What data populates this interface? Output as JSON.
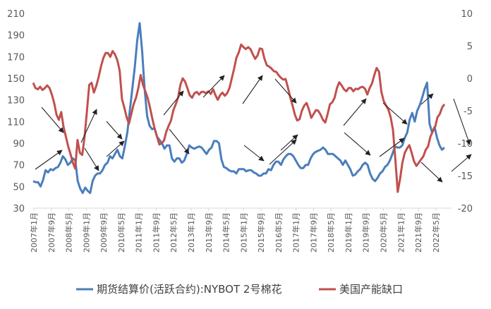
{
  "chart_data": {
    "type": "line",
    "title": "",
    "x_labels": [
      "2007年1月",
      "2007年9月",
      "2008年5月",
      "2009年1月",
      "2009年9月",
      "2010年5月",
      "2011年1月",
      "2011年9月",
      "2012年5月",
      "2013年1月",
      "2013年9月",
      "2014年5月",
      "2015年1月",
      "2015年9月",
      "2016年5月",
      "2017年1月",
      "2017年9月",
      "2018年5月",
      "2019年1月",
      "2019年9月",
      "2020年5月",
      "2021年1月",
      "2021年9月",
      "2022年5月"
    ],
    "y_left": {
      "min": 30,
      "max": 210,
      "ticks": [
        30,
        50,
        70,
        90,
        110,
        130,
        150,
        170,
        190,
        210
      ]
    },
    "y_right": {
      "min": -20,
      "max": 10,
      "ticks": [
        -20,
        -15,
        -10,
        -5,
        0,
        5,
        10
      ]
    },
    "grid": false,
    "legend_position": "bottom",
    "series": [
      {
        "name": "期货结算价(活跃合约):NYBOT 2号棉花",
        "axis": "left",
        "color": "#4a7ebb",
        "values": [
          55,
          54,
          54,
          50,
          56,
          65,
          63,
          66,
          65,
          67,
          68,
          72,
          78,
          75,
          70,
          72,
          76,
          74,
          55,
          48,
          44,
          49,
          46,
          44,
          55,
          60,
          62,
          62,
          65,
          70,
          72,
          78,
          76,
          80,
          84,
          78,
          76,
          87,
          100,
          120,
          140,
          160,
          185,
          201,
          175,
          140,
          115,
          106,
          103,
          104,
          96,
          93,
          90,
          85,
          88,
          88,
          76,
          73,
          76,
          76,
          72,
          74,
          80,
          88,
          86,
          85,
          86,
          87,
          86,
          83,
          80,
          84,
          86,
          92,
          92,
          90,
          75,
          68,
          67,
          65,
          64,
          64,
          62,
          66,
          66,
          66,
          64,
          65,
          65,
          63,
          62,
          60,
          60,
          62,
          62,
          66,
          65,
          70,
          73,
          73,
          70,
          75,
          78,
          80,
          80,
          78,
          74,
          70,
          67,
          67,
          70,
          70,
          76,
          80,
          82,
          83,
          84,
          86,
          84,
          80,
          80,
          80,
          78,
          76,
          74,
          70,
          74,
          70,
          66,
          60,
          61,
          64,
          66,
          70,
          72,
          70,
          62,
          57,
          55,
          58,
          62,
          64,
          68,
          70,
          74,
          80,
          87,
          86,
          86,
          88,
          95,
          100,
          112,
          118,
          110,
          120,
          125,
          132,
          140,
          146,
          108,
          100,
          105,
          95,
          88,
          84,
          86
        ]
      },
      {
        "name": "美国产能缺口",
        "axis": "right",
        "color": "#c0504d",
        "values": [
          -0.7,
          -1.5,
          -1.7,
          -1.3,
          -1.8,
          -1.5,
          -1.1,
          -1.5,
          -2.5,
          -3.8,
          -5.6,
          -6.4,
          -5.2,
          -7.5,
          -9.0,
          -10.5,
          -11.7,
          -13.0,
          -13.9,
          -9.5,
          -11.5,
          -11.8,
          -9.0,
          -5.1,
          -1.0,
          -0.7,
          -2.2,
          -1.2,
          0.2,
          1.8,
          3.1,
          3.9,
          3.9,
          3.3,
          4.2,
          3.7,
          2.8,
          1.2,
          -3.2,
          -4.5,
          -6.0,
          -7.0,
          -5.5,
          -4.0,
          -3.0,
          -1.5,
          0.5,
          -1.0,
          -2.0,
          -3.0,
          -4.5,
          -6.2,
          -7.8,
          -9.0,
          -10.2,
          -10.0,
          -9.6,
          -8.2,
          -7.3,
          -6.5,
          -4.9,
          -4.0,
          -3.0,
          -1.0,
          0.0,
          -0.5,
          -1.5,
          -2.6,
          -3.0,
          -2.3,
          -2.1,
          -2.5,
          -2.1,
          -2.1,
          -2.3,
          -2.0,
          -2.4,
          -1.7,
          -2.6,
          -3.3,
          -2.6,
          -2.2,
          -2.7,
          -2.3,
          -1.5,
          0.0,
          1.5,
          3.2,
          4.0,
          5.2,
          4.8,
          4.5,
          4.8,
          4.5,
          3.7,
          3.0,
          3.5,
          4.6,
          4.5,
          3.0,
          2.0,
          1.8,
          1.5,
          1.1,
          1.0,
          0.5,
          0.1,
          -0.2,
          -0.1,
          -1.4,
          -2.9,
          -4.2,
          -5.6,
          -6.5,
          -6.3,
          -5.0,
          -4.2,
          -3.8,
          -4.8,
          -6.1,
          -5.5,
          -4.9,
          -5.0,
          -5.6,
          -6.4,
          -6.8,
          -5.5,
          -4.0,
          -3.7,
          -3.0,
          -1.5,
          -0.6,
          -1.1,
          -1.7,
          -2.0,
          -1.5,
          -1.5,
          -2.0,
          -1.6,
          -1.7,
          -1.4,
          -1.3,
          -1.6,
          -2.5,
          -1.5,
          -0.8,
          0.5,
          1.6,
          1.0,
          -2.1,
          -3.5,
          -4.2,
          -4.8,
          -6.0,
          -8.0,
          -12.5,
          -17.5,
          -15.5,
          -13.0,
          -11.5,
          -10.8,
          -10.3,
          -11.5,
          -12.8,
          -13.5,
          -13.0,
          -12.5,
          -12.0,
          -11.0,
          -10.5,
          -9.0,
          -8.2,
          -7.5,
          -6.0,
          -5.5,
          -4.5,
          -4.0
        ]
      }
    ],
    "annotations": "arrows"
  }
}
